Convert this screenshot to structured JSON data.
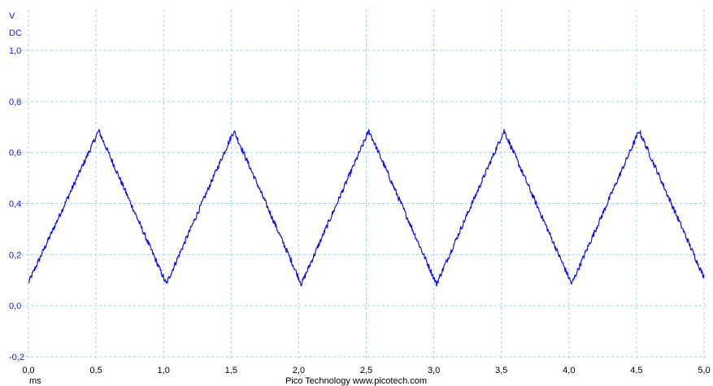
{
  "chart_data": {
    "type": "line",
    "ylabel_unit": "V",
    "ylabel_coupling": "DC",
    "xlabel": "ms",
    "xlim": [
      0.0,
      5.0
    ],
    "ylim": [
      -0.2,
      1.0
    ],
    "x_ticks": [
      "0,0",
      "0,5",
      "1,0",
      "1,5",
      "2,0",
      "2,5",
      "3,0",
      "3,5",
      "4,0",
      "4,5",
      "5,0"
    ],
    "y_ticks": [
      "1,0",
      "0,8",
      "0,6",
      "0,4",
      "0,2",
      "0,0",
      "-0,2"
    ],
    "x_tick_values": [
      0.0,
      0.5,
      1.0,
      1.5,
      2.0,
      2.5,
      3.0,
      3.5,
      4.0,
      4.5,
      5.0
    ],
    "y_tick_values": [
      1.0,
      0.8,
      0.6,
      0.4,
      0.2,
      0.0,
      -0.2
    ],
    "grid": true,
    "footer": "Pico Technology   www.picotech.com",
    "series": [
      {
        "color": "#1010dd",
        "x": [
          0.0,
          0.52,
          1.02,
          1.52,
          2.02,
          2.52,
          3.02,
          3.52,
          4.02,
          4.52,
          5.0
        ],
        "y": [
          0.09,
          0.685,
          0.085,
          0.685,
          0.085,
          0.685,
          0.085,
          0.685,
          0.085,
          0.685,
          0.11
        ]
      }
    ]
  }
}
